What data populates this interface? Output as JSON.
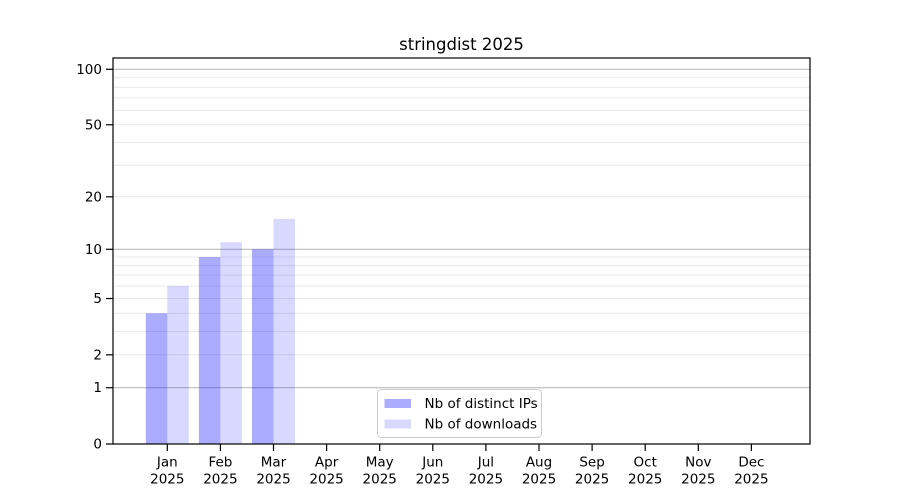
{
  "chart_data": {
    "type": "bar",
    "title": "stringdist 2025",
    "categories": [
      {
        "month": "Jan",
        "year": "2025"
      },
      {
        "month": "Feb",
        "year": "2025"
      },
      {
        "month": "Mar",
        "year": "2025"
      },
      {
        "month": "Apr",
        "year": "2025"
      },
      {
        "month": "May",
        "year": "2025"
      },
      {
        "month": "Jun",
        "year": "2025"
      },
      {
        "month": "Jul",
        "year": "2025"
      },
      {
        "month": "Aug",
        "year": "2025"
      },
      {
        "month": "Sep",
        "year": "2025"
      },
      {
        "month": "Oct",
        "year": "2025"
      },
      {
        "month": "Nov",
        "year": "2025"
      },
      {
        "month": "Dec",
        "year": "2025"
      }
    ],
    "series": [
      {
        "name": "Nb of distinct IPs",
        "color": "rgba(0,0,255,0.33)",
        "color_over_white_hex": "#aaaaf5",
        "values": [
          4,
          9,
          10,
          null,
          null,
          null,
          null,
          null,
          null,
          null,
          null,
          null
        ]
      },
      {
        "name": "Nb of downloads",
        "color": "rgba(0,0,255,0.15)",
        "color_over_white_hex": "#dcdcf8",
        "values": [
          6,
          11,
          15,
          null,
          null,
          null,
          null,
          null,
          null,
          null,
          null,
          null
        ]
      }
    ],
    "y_axis": {
      "scale": "log1p",
      "tick_labels": [
        0,
        1,
        2,
        5,
        10,
        20,
        50,
        100
      ],
      "major_gridlines": [
        1,
        10,
        100
      ],
      "minor_gridlines": [
        2,
        3,
        4,
        5,
        6,
        7,
        8,
        9,
        20,
        30,
        40,
        50,
        60,
        70,
        80,
        90
      ]
    },
    "legend": {
      "position": "lower center"
    },
    "colors": {
      "axis": "#000000",
      "major_grid": "#bdbdbd",
      "minor_grid": "#e9e9e9",
      "legend_border": "#cccccc",
      "background": "#ffffff"
    }
  }
}
